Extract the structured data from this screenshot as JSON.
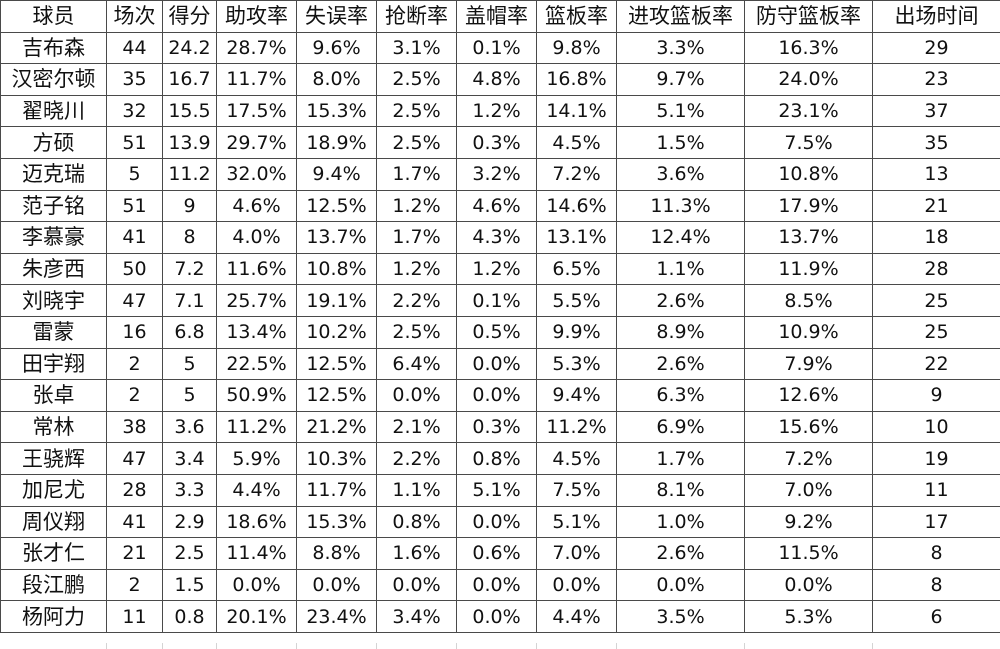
{
  "table": {
    "headers": [
      "球员",
      "场次",
      "得分",
      "助攻率",
      "失误率",
      "抢断率",
      "盖帽率",
      "篮板率",
      "进攻篮板率",
      "防守篮板率",
      "出场时间"
    ],
    "rows": [
      [
        "吉布森",
        "44",
        "24.2",
        "28.7%",
        "9.6%",
        "3.1%",
        "0.1%",
        "9.8%",
        "3.3%",
        "16.3%",
        "29"
      ],
      [
        "汉密尔顿",
        "35",
        "16.7",
        "11.7%",
        "8.0%",
        "2.5%",
        "4.8%",
        "16.8%",
        "9.7%",
        "24.0%",
        "23"
      ],
      [
        "翟晓川",
        "32",
        "15.5",
        "17.5%",
        "15.3%",
        "2.5%",
        "1.2%",
        "14.1%",
        "5.1%",
        "23.1%",
        "37"
      ],
      [
        "方硕",
        "51",
        "13.9",
        "29.7%",
        "18.9%",
        "2.5%",
        "0.3%",
        "4.5%",
        "1.5%",
        "7.5%",
        "35"
      ],
      [
        "迈克瑞",
        "5",
        "11.2",
        "32.0%",
        "9.4%",
        "1.7%",
        "3.2%",
        "7.2%",
        "3.6%",
        "10.8%",
        "13"
      ],
      [
        "范子铭",
        "51",
        "9",
        "4.6%",
        "12.5%",
        "1.2%",
        "4.6%",
        "14.6%",
        "11.3%",
        "17.9%",
        "21"
      ],
      [
        "李慕豪",
        "41",
        "8",
        "4.0%",
        "13.7%",
        "1.7%",
        "4.3%",
        "13.1%",
        "12.4%",
        "13.7%",
        "18"
      ],
      [
        "朱彦西",
        "50",
        "7.2",
        "11.6%",
        "10.8%",
        "1.2%",
        "1.2%",
        "6.5%",
        "1.1%",
        "11.9%",
        "28"
      ],
      [
        "刘晓宇",
        "47",
        "7.1",
        "25.7%",
        "19.1%",
        "2.2%",
        "0.1%",
        "5.5%",
        "2.6%",
        "8.5%",
        "25"
      ],
      [
        "雷蒙",
        "16",
        "6.8",
        "13.4%",
        "10.2%",
        "2.5%",
        "0.5%",
        "9.9%",
        "8.9%",
        "10.9%",
        "25"
      ],
      [
        "田宇翔",
        "2",
        "5",
        "22.5%",
        "12.5%",
        "6.4%",
        "0.0%",
        "5.3%",
        "2.6%",
        "7.9%",
        "22"
      ],
      [
        "张卓",
        "2",
        "5",
        "50.9%",
        "12.5%",
        "0.0%",
        "0.0%",
        "9.4%",
        "6.3%",
        "12.6%",
        "9"
      ],
      [
        "常林",
        "38",
        "3.6",
        "11.2%",
        "21.2%",
        "2.1%",
        "0.3%",
        "11.2%",
        "6.9%",
        "15.6%",
        "10"
      ],
      [
        "王骁辉",
        "47",
        "3.4",
        "5.9%",
        "10.3%",
        "2.2%",
        "0.8%",
        "4.5%",
        "1.7%",
        "7.2%",
        "19"
      ],
      [
        "加尼尤",
        "28",
        "3.3",
        "4.4%",
        "11.7%",
        "1.1%",
        "5.1%",
        "7.5%",
        "8.1%",
        "7.0%",
        "11"
      ],
      [
        "周仪翔",
        "41",
        "2.9",
        "18.6%",
        "15.3%",
        "0.8%",
        "0.0%",
        "5.1%",
        "1.0%",
        "9.2%",
        "17"
      ],
      [
        "张才仁",
        "21",
        "2.5",
        "11.4%",
        "8.8%",
        "1.6%",
        "0.6%",
        "7.0%",
        "2.6%",
        "11.5%",
        "8"
      ],
      [
        "段江鹏",
        "2",
        "1.5",
        "0.0%",
        "0.0%",
        "0.0%",
        "0.0%",
        "0.0%",
        "0.0%",
        "0.0%",
        "8"
      ],
      [
        "杨阿力",
        "11",
        "0.8",
        "20.1%",
        "23.4%",
        "3.4%",
        "0.0%",
        "4.4%",
        "3.5%",
        "5.3%",
        "6"
      ]
    ]
  }
}
